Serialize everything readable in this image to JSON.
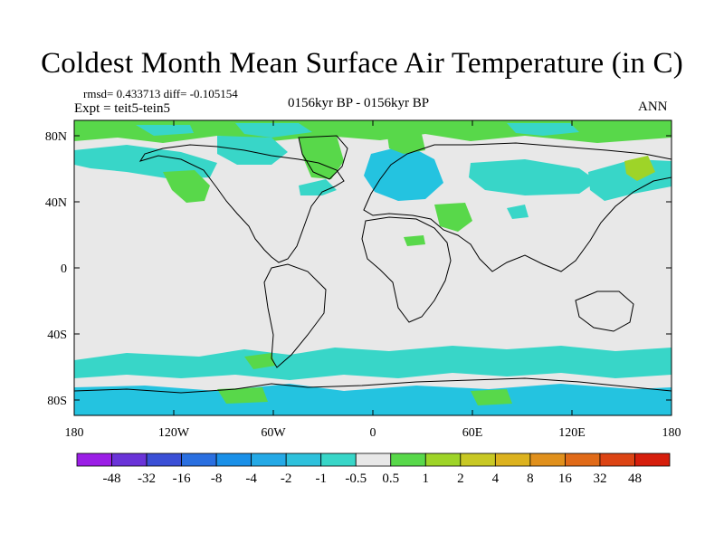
{
  "title": "Coldest Month Mean Surface Air Temperature (in C)",
  "stats": {
    "rmsd_diff": "rmsd= 0.433713 diff= -0.105154",
    "expt": "Expt = teit5-tein5",
    "period": "0156kyr BP - 0156kyr BP",
    "season": "ANN"
  },
  "axes": {
    "lat_labels": [
      "80N",
      "40N",
      "0",
      "40S",
      "80S"
    ],
    "lon_labels": [
      "180",
      "120W",
      "60W",
      "0",
      "60E",
      "120E",
      "180"
    ]
  },
  "colorbar": {
    "labels": [
      "-48",
      "-32",
      "-16",
      "-8",
      "-4",
      "-2",
      "-1",
      "-0.5",
      "0.5",
      "1",
      "2",
      "4",
      "8",
      "16",
      "32",
      "48"
    ],
    "colors": [
      "#9b1ee6",
      "#6a33d8",
      "#3a4fd6",
      "#2a6fe0",
      "#1a90e8",
      "#24a9e6",
      "#2ec1dc",
      "#38d6c8",
      "#e8e8e8",
      "#58d84a",
      "#9ed428",
      "#c8c824",
      "#dcb21e",
      "#e0901c",
      "#e06a18",
      "#dc4414",
      "#d61e0c"
    ]
  },
  "colors": {
    "background": "#e8e8e8",
    "cool": "#38d6c8",
    "cooler": "#24c3e0",
    "warm": "#58d84a",
    "warmer": "#9ed428",
    "coastline": "#000000"
  }
}
